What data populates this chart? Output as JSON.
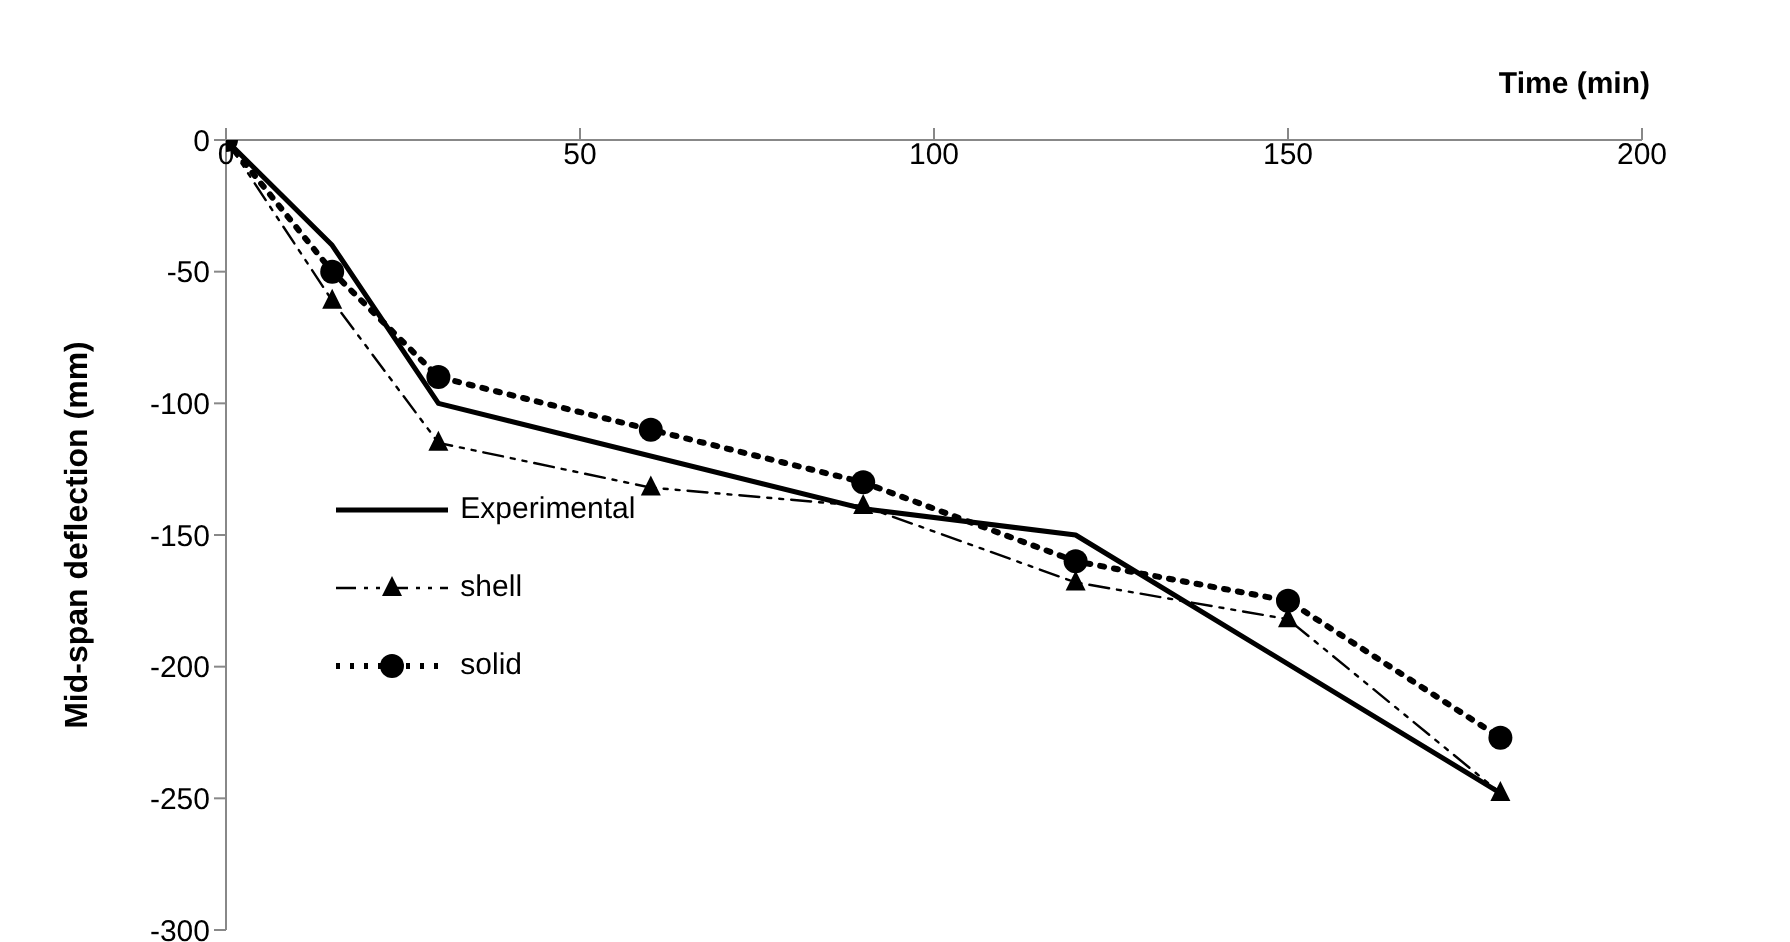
{
  "chart_data": {
    "type": "line",
    "xlabel": "Time (min)",
    "ylabel": "Mid-span deflection (mm)",
    "xlim": [
      0,
      200
    ],
    "xticks": [
      0,
      50,
      100,
      150,
      200
    ],
    "ylim": [
      -300,
      0
    ],
    "yticks": [
      -300,
      -250,
      -200,
      -150,
      -100,
      -50,
      0
    ],
    "grid": false,
    "legend": "left",
    "series": [
      {
        "name": "Experimental",
        "color": "#000000",
        "line_style": "solid",
        "x": [
          0,
          15,
          30,
          90,
          120,
          180
        ],
        "values": [
          0,
          -40,
          -100,
          -140,
          -150,
          -248
        ]
      },
      {
        "name": "shell",
        "color": "#000000",
        "marker": "triangle",
        "line_style": "dashed",
        "x": [
          0,
          15,
          30,
          60,
          90,
          120,
          150,
          180
        ],
        "values": [
          0,
          -61,
          -115,
          -132,
          -139,
          -168,
          -182,
          -248
        ]
      },
      {
        "name": "solid",
        "color": "#000000",
        "marker": "circle",
        "line_style": "dotted",
        "x": [
          0,
          15,
          30,
          60,
          90,
          120,
          150,
          180
        ],
        "values": [
          0,
          -50,
          -90,
          -110,
          -130,
          -160,
          -175,
          -227
        ]
      }
    ]
  }
}
